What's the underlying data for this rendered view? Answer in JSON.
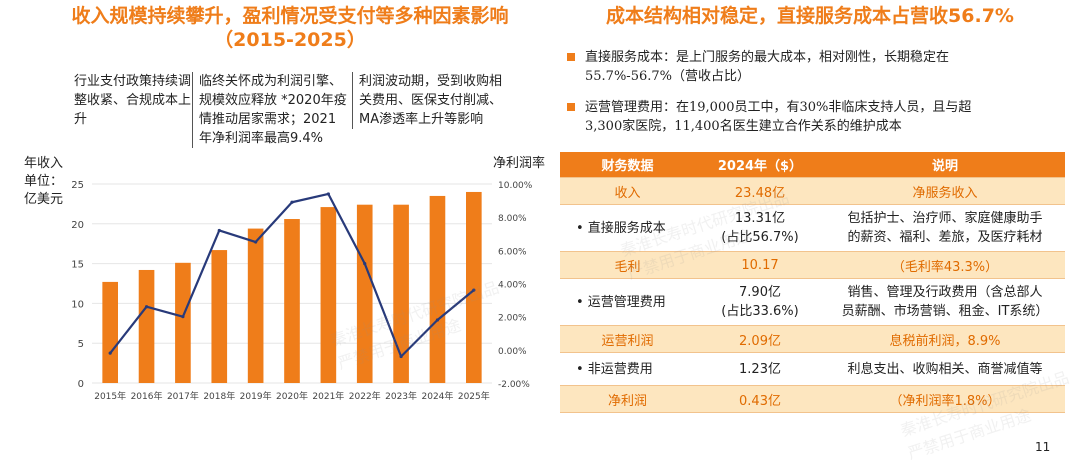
{
  "left_title": {
    "line1": "收入规模持续攀升，盈利情况受支付等多种因素影响",
    "line2": "（2015-2025）"
  },
  "right_title": "成本结构相对稳定，直接服务成本占营收56.7%",
  "notes": [
    "行业支付政策持续调整收紧、合规成本上升",
    "临终关怀成为利润引擎、规模效应释放 *2020年疫情推动居家需求；2021年净利润率最高9.4%",
    "利润波动期，受到收购相关费用、医保支付削减、MA渗透率上升等影响"
  ],
  "axis_labels": {
    "left_line1": "年收入",
    "left_line2": "单位：",
    "left_line3": "亿美元",
    "right": "净利润率"
  },
  "chart_data": {
    "type": "bar",
    "title": "",
    "categories": [
      "2015年",
      "2016年",
      "2017年",
      "2018年",
      "2019年",
      "2020年",
      "2021年",
      "2022年",
      "2023年",
      "2024年",
      "2025年"
    ],
    "series": [
      {
        "name": "年收入（亿美元）",
        "type": "bar",
        "axis": "left",
        "values": [
          12.7,
          14.2,
          15.1,
          16.7,
          19.4,
          20.6,
          22.1,
          22.4,
          22.4,
          23.5,
          24.0
        ]
      },
      {
        "name": "净利润率",
        "type": "line",
        "axis": "right",
        "values": [
          -0.2,
          2.6,
          2.0,
          7.2,
          6.5,
          8.9,
          9.4,
          5.2,
          -0.4,
          1.8,
          3.6
        ]
      }
    ],
    "ylim": [
      0,
      25
    ],
    "y_ticks": [
      "0",
      "5",
      "10",
      "15",
      "20",
      "25"
    ],
    "y2lim": [
      -2,
      10
    ],
    "y2_ticks": [
      "-2.00%",
      "0.00%",
      "2.00%",
      "4.00%",
      "6.00%",
      "8.00%",
      "10.00%"
    ],
    "xlabel": "",
    "ylabel": "年收入 单位：亿美元",
    "y2label": "净利润率",
    "colors": {
      "bar": "#ef7d1a",
      "line": "#283a7a"
    }
  },
  "bullets": [
    {
      "line1": "直接服务成本：是上门服务的最大成本，相对刚性，长期稳定在",
      "line2": "55.7%-56.7%（营收占比）"
    },
    {
      "line1": "运营管理费用：在19,000员工中，有30%非临床支持人员，且与超",
      "line2": "3,300家医院，11,400名医生建立合作关系的维护成本"
    }
  ],
  "table": {
    "headers": [
      "财务数据",
      "2024年（$）",
      "说明"
    ],
    "rows": [
      {
        "style": "hl",
        "cells": [
          "收入",
          "23.48亿",
          "净服务收入"
        ]
      },
      {
        "style": "plain",
        "cells": [
          "• 直接服务成本",
          "13.31亿\n(占比56.7%)",
          "包括护士、治疗师、家庭健康助手\n的薪资、福利、差旅，及医疗耗材"
        ]
      },
      {
        "style": "hl",
        "cells": [
          "毛利",
          "10.17",
          "（毛利率43.3%）"
        ]
      },
      {
        "style": "plain",
        "cells": [
          "• 运营管理费用",
          "7.90亿\n(占比33.6%)",
          "销售、管理及行政费用（含总部人\n员薪酬、市场营销、租金、IT系统）"
        ]
      },
      {
        "style": "hl",
        "cells": [
          "运营利润",
          "2.09亿",
          "息税前利润，8.9%"
        ]
      },
      {
        "style": "plain",
        "cells": [
          "• 非运营费用",
          "1.23亿",
          "利息支出、收购相关、商誉减值等"
        ]
      },
      {
        "style": "hl",
        "cells": [
          "净利润",
          "0.43亿",
          "（净利润率1.8%）"
        ]
      }
    ]
  },
  "page_number": "11",
  "watermark": {
    "line1": "秦淮长寿时代研究院出品",
    "line2": "严禁用于商业用途"
  },
  "colors": {
    "accent": "#ef7d1a",
    "highlight_bg": "#fde6bf",
    "line": "#283a7a"
  }
}
